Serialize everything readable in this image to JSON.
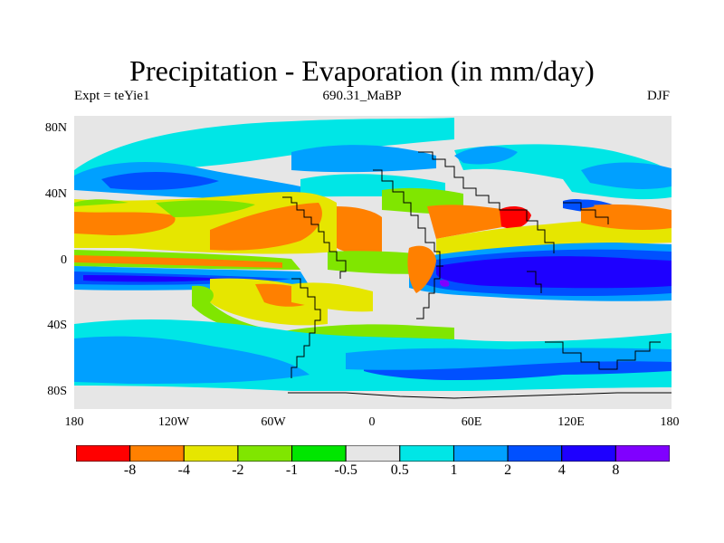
{
  "title": "Precipitation - Evaporation (in mm/day)",
  "subtitle_left": "Expt = teYie1",
  "subtitle_center": "690.31_MaBP",
  "subtitle_right": "DJF",
  "y_ticks": [
    "80N",
    "40N",
    "0",
    "40S",
    "80S"
  ],
  "x_ticks": [
    "180",
    "120W",
    "60W",
    "0",
    "60E",
    "120E",
    "180"
  ],
  "colorbar": {
    "colors": [
      "#ff0000",
      "#ff8000",
      "#e6e600",
      "#80e600",
      "#00e600",
      "#e6e6e6",
      "#00e6e6",
      "#00a0ff",
      "#0050ff",
      "#1e00ff",
      "#8000ff"
    ],
    "labels": [
      "-8",
      "-4",
      "-2",
      "-1",
      "-0.5",
      "0.5",
      "1",
      "2",
      "4",
      "8"
    ]
  },
  "palette": {
    "background": "#e6e6e6",
    "land_outline": "#000000"
  }
}
